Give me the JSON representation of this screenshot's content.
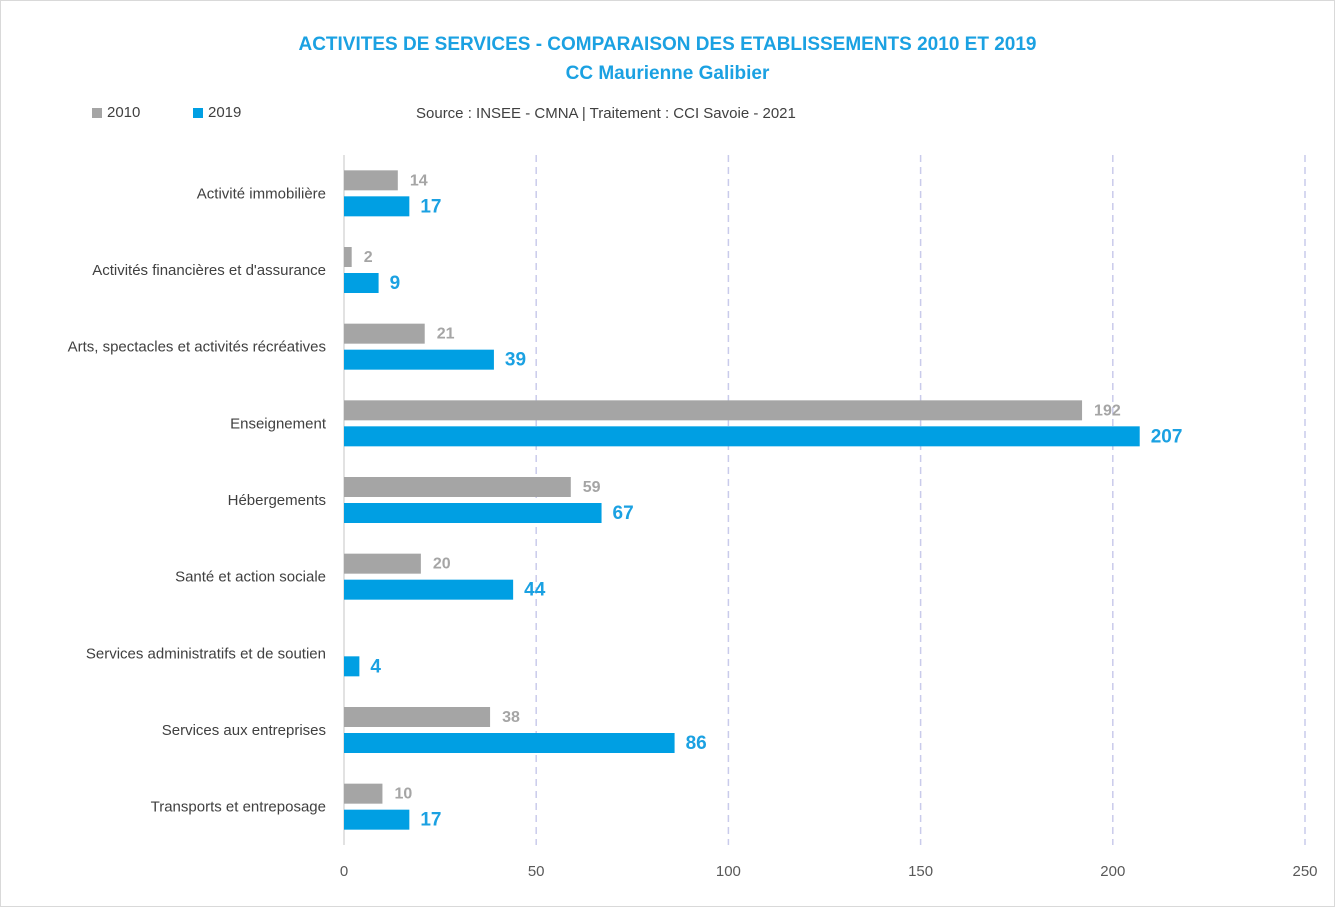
{
  "chart_data": {
    "type": "bar",
    "orientation": "horizontal",
    "title": "ACTIVITES DE SERVICES - COMPARAISON DES ETABLISSEMENTS 2010 ET 2019",
    "subtitle": "CC Maurienne Galibier",
    "source": "Source : INSEE - CMNA  |  Traitement : CCI Savoie - 2021",
    "categories": [
      "Activité immobilière",
      "Activités financières et d'assurance",
      "Arts, spectacles et activités récréatives",
      "Enseignement",
      "Hébergements",
      "Santé et action sociale",
      "Services administratifs et de soutien",
      "Services aux entreprises",
      "Transports et entreposage"
    ],
    "series": [
      {
        "name": "2010",
        "color": "#a5a5a5",
        "values": [
          14,
          2,
          21,
          192,
          59,
          20,
          null,
          38,
          10
        ]
      },
      {
        "name": "2019",
        "color": "#009fe3",
        "values": [
          17,
          9,
          39,
          207,
          67,
          44,
          4,
          86,
          17
        ]
      }
    ],
    "xlim": [
      0,
      250
    ],
    "xticks": [
      0,
      50,
      100,
      150,
      200,
      250
    ],
    "grid": "vertical dashed",
    "legend_position": "top-left"
  }
}
